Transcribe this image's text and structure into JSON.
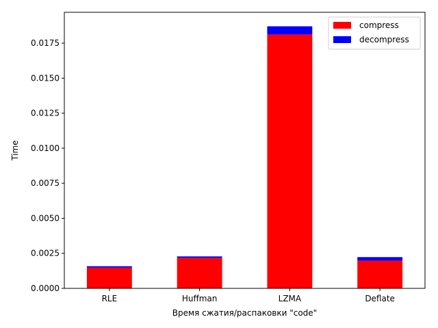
{
  "chart_data": {
    "type": "bar",
    "stacked": true,
    "categories": [
      "RLE",
      "Huffman",
      "LZMA",
      "Deflate"
    ],
    "series": [
      {
        "name": "compress",
        "color": "#ff0000",
        "values": [
          0.00148,
          0.00218,
          0.01812,
          0.00198
        ]
      },
      {
        "name": "decompress",
        "color": "#0000ff",
        "values": [
          0.0001,
          0.0001,
          0.00058,
          0.00025
        ]
      }
    ],
    "xlabel": "Время сжатия/распаковки \"code\"",
    "ylabel": "Time",
    "ylim": [
      0,
      0.0197
    ],
    "yticks": [
      0,
      0.0025,
      0.005,
      0.0075,
      0.01,
      0.0125,
      0.015,
      0.0175
    ],
    "ytick_labels": [
      "0.0000",
      "0.0025",
      "0.0050",
      "0.0075",
      "0.0100",
      "0.0125",
      "0.0150",
      "0.0175"
    ],
    "legend": "top-right",
    "grid": false
  }
}
